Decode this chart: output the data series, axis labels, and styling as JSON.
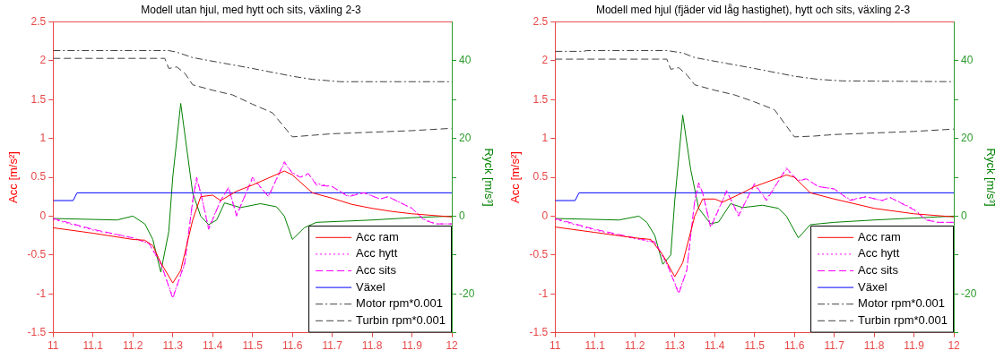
{
  "chart_data": [
    {
      "type": "line",
      "title": "Modell utan hjul, med hytt och sits, växling 2-3",
      "ylabel": "Acc [m/s²]",
      "y2label": "Ryck [m/s³]",
      "legend": "bottom right",
      "xlim": [
        11,
        12
      ],
      "xticks": [
        11,
        11.1,
        11.2,
        11.3,
        11.4,
        11.5,
        11.6,
        11.7,
        11.8,
        11.9,
        12
      ],
      "ylim": [
        -1.5,
        2.5
      ],
      "yticks": [
        -1.5,
        -1,
        -0.5,
        0,
        0.5,
        1,
        1.5,
        2,
        2.5
      ],
      "y2lim": [
        -30,
        50
      ],
      "y2ticks": [
        {
          "value": -30,
          "label": null
        },
        -20,
        {
          "value": -10,
          "label": null
        },
        0,
        {
          "value": 10,
          "label": null
        },
        20,
        {
          "value": 30,
          "label": null
        },
        40
      ],
      "series": [
        {
          "name": "Acc ram",
          "color": "#ff0000",
          "line_style": "solid",
          "x": [
            11,
            11.1,
            11.2,
            11.23,
            11.25,
            11.27,
            11.3,
            11.32,
            11.35,
            11.37,
            11.4,
            11.42,
            11.46,
            11.5,
            11.58,
            11.6,
            11.65,
            11.7,
            11.75,
            11.8,
            11.85,
            11.9,
            12
          ],
          "values": [
            -0.15,
            -0.22,
            -0.3,
            -0.31,
            -0.38,
            -0.6,
            -0.86,
            -0.7,
            -0.05,
            0.25,
            0.27,
            0.2,
            0.32,
            0.4,
            0.58,
            0.53,
            0.3,
            0.23,
            0.15,
            0.1,
            0.06,
            0.03,
            -0.01
          ]
        },
        {
          "name": "Acc hytt",
          "color": "#ff00ff",
          "line_style": "dotted",
          "x": [
            11,
            11.1,
            11.2,
            11.24,
            11.27,
            11.3,
            11.33,
            11.35,
            11.36,
            11.37,
            11.39,
            11.42,
            11.44,
            11.46,
            11.5,
            11.54,
            11.58,
            11.6,
            11.62,
            11.64,
            11.66,
            11.7,
            11.74,
            11.78,
            11.82,
            11.84,
            11.9,
            11.93,
            11.96,
            12
          ],
          "values": [
            -0.04,
            -0.18,
            -0.28,
            -0.35,
            -0.62,
            -1.04,
            -0.62,
            0.18,
            0.46,
            0.3,
            -0.15,
            0.2,
            0.36,
            0.02,
            0.48,
            0.26,
            0.68,
            0.56,
            0.5,
            0.54,
            0.42,
            0.38,
            0.26,
            0.3,
            0.22,
            0.25,
            0.1,
            -0.04,
            -0.1,
            -0.1
          ]
        },
        {
          "name": "Acc sits",
          "color": "#ff00ff",
          "line_style": "dashed",
          "x": [
            11,
            11.1,
            11.2,
            11.24,
            11.27,
            11.3,
            11.33,
            11.35,
            11.36,
            11.37,
            11.39,
            11.42,
            11.44,
            11.46,
            11.5,
            11.54,
            11.58,
            11.6,
            11.62,
            11.64,
            11.66,
            11.7,
            11.74,
            11.78,
            11.82,
            11.84,
            11.9,
            11.93,
            11.96,
            12
          ],
          "values": [
            -0.03,
            -0.17,
            -0.28,
            -0.35,
            -0.6,
            -1.06,
            -0.6,
            0.2,
            0.5,
            0.3,
            -0.17,
            0.2,
            0.37,
            0,
            0.5,
            0.25,
            0.7,
            0.55,
            0.5,
            0.55,
            0.4,
            0.38,
            0.25,
            0.3,
            0.22,
            0.25,
            0.1,
            -0.05,
            -0.1,
            -0.1
          ]
        },
        {
          "name": "Växel",
          "color": "#0000ff",
          "line_style": "solid",
          "x": [
            11,
            11.05,
            11.06,
            12
          ],
          "values": [
            0.2,
            0.2,
            0.3,
            0.3
          ]
        },
        {
          "name": "Motor rpm*0.001",
          "color": "#404040",
          "line_style": "dashdot",
          "x": [
            11,
            11.29,
            11.31,
            11.35,
            11.5,
            11.6,
            11.65,
            11.72,
            12
          ],
          "values": [
            2.13,
            2.13,
            2.11,
            2.04,
            1.9,
            1.8,
            1.76,
            1.73,
            1.73
          ]
        },
        {
          "name": "Turbin rpm*0.001",
          "color": "#404040",
          "line_style": "dashed",
          "x": [
            11,
            11.28,
            11.29,
            11.31,
            11.33,
            11.35,
            11.4,
            11.45,
            11.5,
            11.55,
            11.6,
            11.65,
            11.7,
            11.8,
            11.9,
            12
          ],
          "values": [
            2.03,
            2.03,
            1.9,
            1.92,
            1.84,
            1.69,
            1.62,
            1.56,
            1.44,
            1.33,
            1.02,
            1.04,
            1.06,
            1.08,
            1.1,
            1.13
          ]
        },
        {
          "color": "#008000",
          "line_style": "solid",
          "axis": "y2",
          "x": [
            11,
            11.16,
            11.2,
            11.23,
            11.25,
            11.27,
            11.29,
            11.3,
            11.32,
            11.35,
            11.37,
            11.39,
            11.41,
            11.43,
            11.47,
            11.52,
            11.56,
            11.58,
            11.6,
            11.63,
            11.66,
            11.8,
            11.9,
            12
          ],
          "values": [
            -0.6,
            -1,
            0,
            -2,
            -6,
            -14.4,
            -4,
            10,
            29,
            6,
            0,
            -2.2,
            -1,
            3.4,
            2.2,
            3.2,
            2.4,
            0,
            -6,
            -3,
            -1.6,
            -1,
            -0.4,
            0
          ]
        }
      ]
    },
    {
      "type": "line",
      "title": "Modell med hjul (fjäder vid låg hastighet), hytt och sits, växling 2-3",
      "ylabel": "Acc [m/s²]",
      "y2label": "Ryck [m/s³]",
      "legend": "bottom right",
      "xlim": [
        11,
        12
      ],
      "xticks": [
        11,
        11.1,
        11.2,
        11.3,
        11.4,
        11.5,
        11.6,
        11.7,
        11.8,
        11.9,
        12
      ],
      "ylim": [
        -1.5,
        2.5
      ],
      "yticks": [
        -1.5,
        -1,
        -0.5,
        0,
        0.5,
        1,
        1.5,
        2,
        2.5
      ],
      "y2lim": [
        -30,
        50
      ],
      "y2ticks": [
        {
          "value": -30,
          "label": null
        },
        -20,
        {
          "value": -10,
          "label": null
        },
        0,
        {
          "value": 10,
          "label": null
        },
        20,
        {
          "value": 30,
          "label": null
        },
        40
      ],
      "series": [
        {
          "name": "Acc ram",
          "color": "#ff0000",
          "line_style": "solid",
          "x": [
            11,
            11.1,
            11.2,
            11.24,
            11.27,
            11.3,
            11.32,
            11.35,
            11.37,
            11.4,
            11.42,
            11.47,
            11.5,
            11.58,
            11.6,
            11.64,
            11.7,
            11.8,
            11.9,
            12
          ],
          "values": [
            -0.14,
            -0.21,
            -0.28,
            -0.3,
            -0.5,
            -0.78,
            -0.6,
            0,
            0.22,
            0.22,
            0.18,
            0.3,
            0.38,
            0.53,
            0.5,
            0.3,
            0.22,
            0.1,
            0.03,
            -0.01
          ]
        },
        {
          "name": "Acc hytt",
          "color": "#ff00ff",
          "line_style": "dotted",
          "x": [
            11,
            11.1,
            11.2,
            11.25,
            11.28,
            11.31,
            11.33,
            11.35,
            11.36,
            11.37,
            11.39,
            11.42,
            11.43,
            11.46,
            11.5,
            11.53,
            11.58,
            11.61,
            11.63,
            11.66,
            11.7,
            11.74,
            11.78,
            11.82,
            11.84,
            11.9,
            11.93,
            11.96,
            12
          ],
          "values": [
            -0.04,
            -0.18,
            -0.29,
            -0.34,
            -0.62,
            -0.98,
            -0.7,
            0.18,
            0.4,
            0.3,
            -0.13,
            0.2,
            0.32,
            0.02,
            0.4,
            0.22,
            0.6,
            0.46,
            0.48,
            0.38,
            0.35,
            0.21,
            0.25,
            0.2,
            0.24,
            0.09,
            -0.04,
            -0.08,
            -0.08
          ]
        },
        {
          "name": "Acc sits",
          "color": "#ff00ff",
          "line_style": "dashed",
          "x": [
            11,
            11.1,
            11.2,
            11.25,
            11.28,
            11.31,
            11.33,
            11.35,
            11.36,
            11.37,
            11.39,
            11.42,
            11.43,
            11.46,
            11.5,
            11.53,
            11.58,
            11.61,
            11.63,
            11.66,
            11.7,
            11.74,
            11.78,
            11.82,
            11.84,
            11.9,
            11.93,
            11.96,
            12
          ],
          "values": [
            -0.03,
            -0.17,
            -0.28,
            -0.33,
            -0.6,
            -1,
            -0.7,
            0.2,
            0.43,
            0.3,
            -0.15,
            0.2,
            0.33,
            0,
            0.42,
            0.2,
            0.62,
            0.45,
            0.48,
            0.38,
            0.35,
            0.2,
            0.25,
            0.2,
            0.24,
            0.08,
            -0.05,
            -0.08,
            -0.08
          ]
        },
        {
          "name": "Växel",
          "color": "#0000ff",
          "line_style": "solid",
          "x": [
            11,
            11.05,
            11.06,
            12
          ],
          "values": [
            0.2,
            0.2,
            0.3,
            0.3
          ]
        },
        {
          "name": "Motor rpm*0.001",
          "color": "#404040",
          "line_style": "dashdot",
          "x": [
            11,
            11.07,
            11.08,
            11.28,
            11.32,
            11.35,
            11.5,
            11.6,
            11.66,
            11.72,
            12
          ],
          "values": [
            2.12,
            2.12,
            2.13,
            2.13,
            2.1,
            2.04,
            1.9,
            1.8,
            1.76,
            1.74,
            1.73
          ]
        },
        {
          "name": "Turbin rpm*0.001",
          "color": "#404040",
          "line_style": "dashed",
          "x": [
            11,
            11.28,
            11.29,
            11.31,
            11.33,
            11.35,
            11.4,
            11.45,
            11.5,
            11.55,
            11.6,
            11.65,
            11.7,
            11.8,
            11.9,
            12
          ],
          "values": [
            2.02,
            2.02,
            1.89,
            1.91,
            1.82,
            1.69,
            1.62,
            1.56,
            1.47,
            1.37,
            1.02,
            1.03,
            1.05,
            1.07,
            1.09,
            1.12
          ]
        },
        {
          "color": "#008000",
          "line_style": "solid",
          "axis": "y2",
          "x": [
            11,
            11.16,
            11.21,
            11.23,
            11.25,
            11.27,
            11.29,
            11.3,
            11.32,
            11.34,
            11.36,
            11.39,
            11.41,
            11.44,
            11.47,
            11.52,
            11.56,
            11.58,
            11.61,
            11.64,
            11.7,
            11.8,
            11.9,
            12
          ],
          "values": [
            -0.6,
            -1,
            0,
            -1.6,
            -5,
            -12.4,
            -10,
            4,
            26,
            12,
            2,
            -2,
            -1.5,
            3.2,
            2.2,
            2.8,
            2,
            0,
            -5.6,
            -2.2,
            -1.6,
            -1,
            -0.5,
            0
          ]
        }
      ]
    }
  ]
}
